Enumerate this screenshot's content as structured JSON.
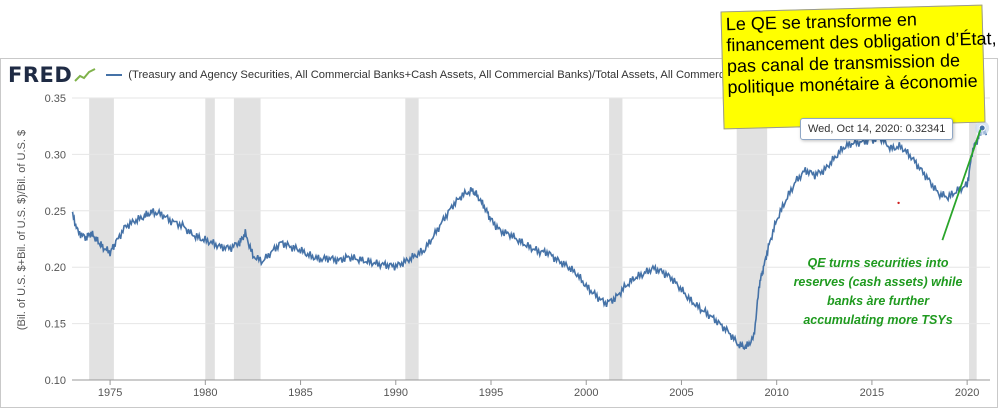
{
  "header": {
    "logo_text": "FRED",
    "legend_label": "(Treasury and Agency Securities, All Commercial Banks+Cash Assets, All Commercial Banks)/Total Assets, All Commercial Banks"
  },
  "annotation": {
    "lines": [
      "Le QE se transforme en",
      "financement des obligation d’État,",
      "pas canal de transmission de",
      "politique monétaire à économie"
    ],
    "background": "#ffff00"
  },
  "tooltip": {
    "date": "Wed, Oct 14, 2020:",
    "value": "0.32341"
  },
  "green_note": {
    "lines": [
      "QE turns securities into",
      "reserves (cash assets) while",
      "banks àre further",
      "accumulating more TSYs"
    ],
    "color": "#1f9a1f"
  },
  "chart_data": {
    "type": "line",
    "ylabel": "(Bil. of U.S. $+Bil. of U.S. $)/Bil. of U.S. $",
    "ylim": [
      0.1,
      0.35
    ],
    "xlim": [
      1973,
      2021.2
    ],
    "y_ticks": [
      "0.10",
      "0.15",
      "0.20",
      "0.25",
      "0.30",
      "0.35"
    ],
    "x_ticks": [
      "1975",
      "1980",
      "1985",
      "1990",
      "1995",
      "2000",
      "2005",
      "2010",
      "2015",
      "2020"
    ],
    "grid": true,
    "line_color": "#4572a7",
    "recession_color": "#e1e1e1",
    "recessions": [
      [
        1973.9,
        1975.2
      ],
      [
        1980.0,
        1980.5
      ],
      [
        1981.5,
        1982.9
      ],
      [
        1990.5,
        1991.2
      ],
      [
        2001.2,
        2001.9
      ],
      [
        2007.9,
        2009.5
      ],
      [
        2020.1,
        2020.5
      ]
    ],
    "series": [
      {
        "x": [
          1973.0,
          1973.3,
          1973.7,
          1974.0,
          1974.3,
          1974.6,
          1975.0,
          1975.3,
          1975.8,
          1976.3,
          1976.8,
          1977.2,
          1977.7,
          1978.2,
          1978.8,
          1979.3,
          1979.8,
          1980.3,
          1980.8,
          1981.3,
          1981.8,
          1982.1,
          1982.5,
          1983.0,
          1983.5,
          1984.0,
          1984.5,
          1985.0,
          1985.5,
          1986.0,
          1986.5,
          1987.0,
          1987.5,
          1988.0,
          1988.5,
          1989.0,
          1989.5,
          1990.0,
          1990.5,
          1991.0,
          1991.5,
          1992.0,
          1992.5,
          1993.0,
          1993.5,
          1994.0,
          1994.3,
          1994.7,
          1995.0,
          1995.5,
          1996.0,
          1996.5,
          1997.0,
          1997.5,
          1998.0,
          1998.5,
          1999.0,
          1999.5,
          2000.0,
          2000.5,
          2001.0,
          2001.5,
          2002.0,
          2002.5,
          2003.0,
          2003.5,
          2004.0,
          2004.5,
          2005.0,
          2005.5,
          2006.0,
          2006.5,
          2007.0,
          2007.5,
          2008.0,
          2008.4,
          2008.8,
          2009.1,
          2009.3,
          2009.6,
          2010.0,
          2010.5,
          2011.0,
          2011.5,
          2012.0,
          2012.5,
          2013.0,
          2013.5,
          2014.0,
          2014.5,
          2015.0,
          2015.5,
          2016.0,
          2016.5,
          2017.0,
          2017.5,
          2018.0,
          2018.5,
          2019.0,
          2019.5,
          2020.0,
          2020.3,
          2020.6,
          2020.79,
          2021.0
        ],
        "y": [
          0.248,
          0.232,
          0.226,
          0.23,
          0.224,
          0.218,
          0.213,
          0.222,
          0.236,
          0.241,
          0.245,
          0.249,
          0.247,
          0.241,
          0.237,
          0.229,
          0.225,
          0.222,
          0.218,
          0.217,
          0.222,
          0.23,
          0.21,
          0.205,
          0.214,
          0.222,
          0.218,
          0.215,
          0.21,
          0.207,
          0.208,
          0.206,
          0.209,
          0.207,
          0.205,
          0.203,
          0.202,
          0.201,
          0.205,
          0.21,
          0.215,
          0.228,
          0.242,
          0.255,
          0.264,
          0.268,
          0.263,
          0.252,
          0.242,
          0.232,
          0.229,
          0.223,
          0.218,
          0.214,
          0.213,
          0.206,
          0.201,
          0.194,
          0.183,
          0.175,
          0.168,
          0.172,
          0.182,
          0.19,
          0.194,
          0.199,
          0.196,
          0.19,
          0.18,
          0.17,
          0.163,
          0.157,
          0.15,
          0.142,
          0.131,
          0.129,
          0.138,
          0.186,
          0.199,
          0.22,
          0.242,
          0.26,
          0.276,
          0.286,
          0.282,
          0.286,
          0.296,
          0.306,
          0.31,
          0.311,
          0.313,
          0.314,
          0.305,
          0.307,
          0.299,
          0.288,
          0.277,
          0.265,
          0.262,
          0.268,
          0.273,
          0.305,
          0.315,
          0.3234,
          0.317
        ]
      }
    ]
  }
}
